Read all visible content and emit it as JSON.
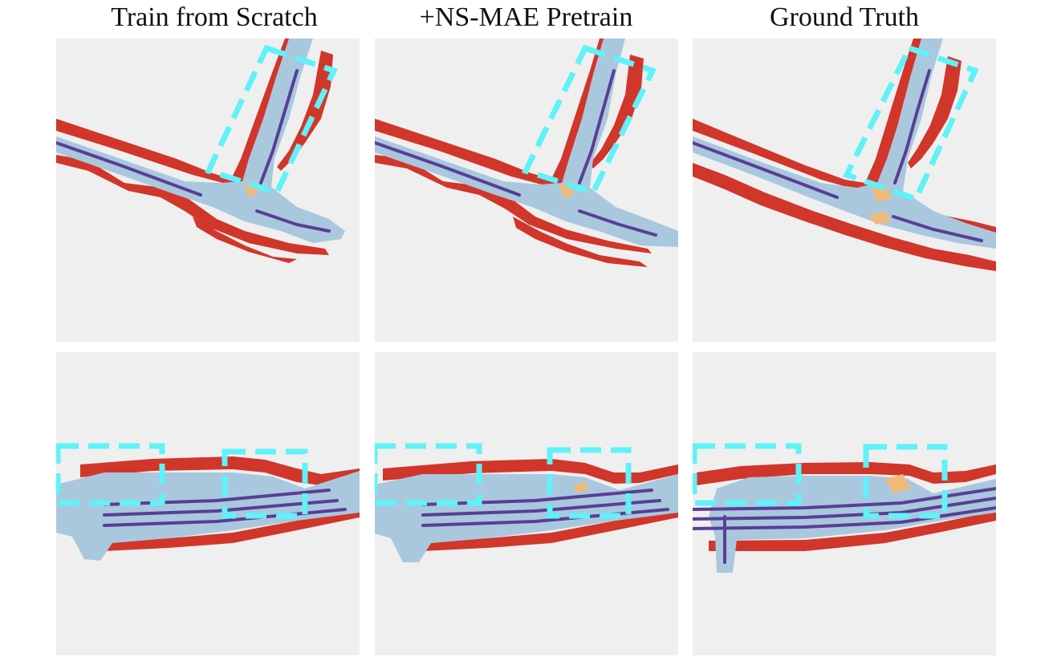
{
  "figure": {
    "columns": [
      {
        "title": "Train from Scratch"
      },
      {
        "title": "+NS-MAE Pretrain"
      },
      {
        "title": "Ground Truth"
      }
    ],
    "colors": {
      "background": "#efefef",
      "road_surface": "#a9c8de",
      "road_boundary": "#d1362b",
      "lane_divider": "#5a3e96",
      "crossing": "#f0b97a",
      "highlight_box": "#5ff2f8"
    }
  }
}
